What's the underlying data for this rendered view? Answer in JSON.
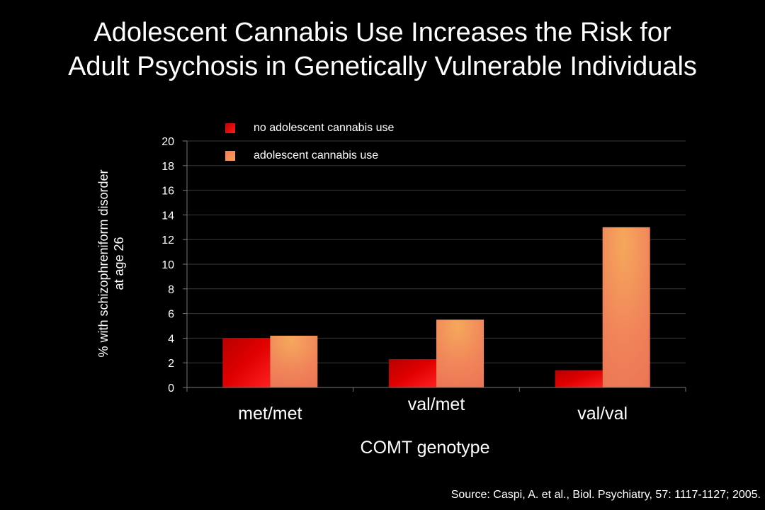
{
  "title_lines": [
    "Adolescent Cannabis Use Increases the Risk for",
    "Adult Psychosis in Genetically Vulnerable Individuals"
  ],
  "source": "Source: Caspi, A. et al., Biol. Psychiatry, 57: 1117-1127; 2005.",
  "chart_data": {
    "type": "bar",
    "categories": [
      "met/met",
      "val/met",
      "val/val"
    ],
    "series": [
      {
        "name": "no adolescent cannabis use",
        "values": [
          4.0,
          2.3,
          1.4
        ],
        "color": "#d40000"
      },
      {
        "name": "adolescent cannabis use",
        "values": [
          4.2,
          5.5,
          13.0
        ],
        "color": "#f0845a"
      }
    ],
    "xlabel": "COMT genotype",
    "ylabel_lines": [
      "% with schizophreniform disorder",
      "at age 26"
    ],
    "ylim": [
      0,
      20
    ],
    "yticks": [
      "0",
      "2",
      "4",
      "6",
      "8",
      "10",
      "12",
      "14",
      "16",
      "18",
      "20"
    ],
    "grid": true,
    "legend_position": "top-left"
  }
}
